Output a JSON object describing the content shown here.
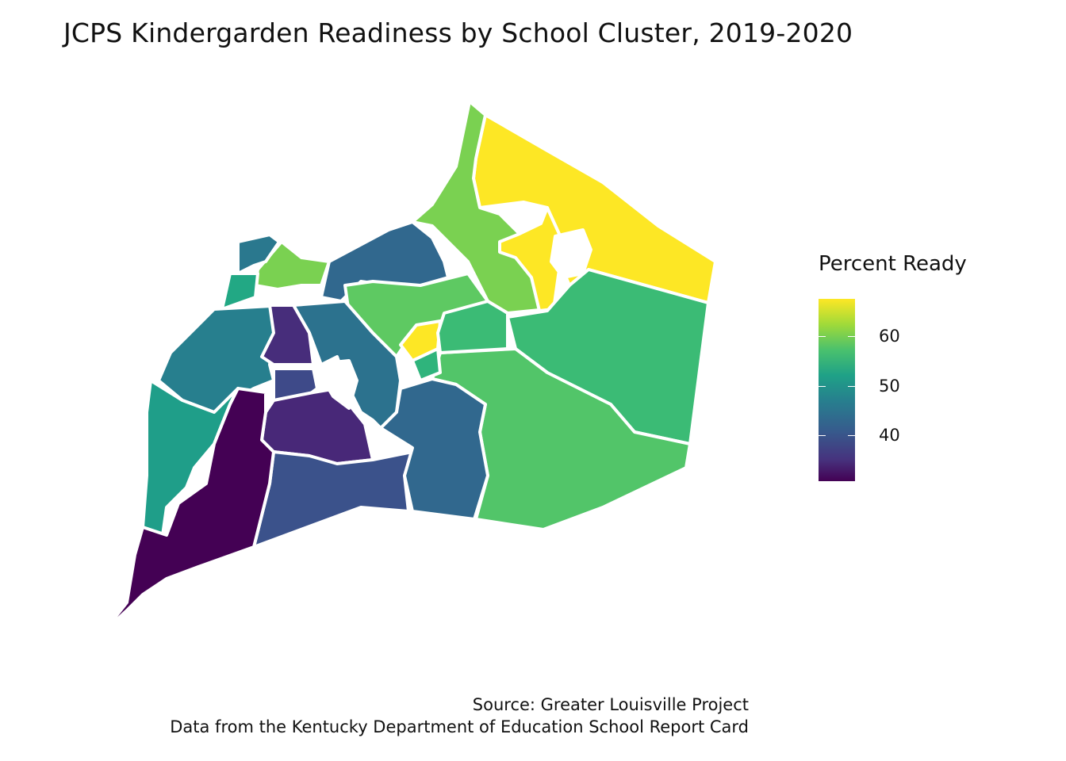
{
  "title": "JCPS Kindergarden Readiness by School Cluster, 2019-2020",
  "legend": {
    "title": "Percent Ready",
    "ticks": [
      "60",
      "50",
      "40"
    ]
  },
  "caption": {
    "line1": "Source: Greater Louisville Project",
    "line2": "Data from the Kentucky Department of Education School Report Card"
  },
  "colors": {
    "border": "#ffffff",
    "scale": [
      "#440154",
      "#46337e",
      "#365c8d",
      "#277f8e",
      "#1fa187",
      "#4ac16d",
      "#a0da39",
      "#fde725"
    ]
  }
}
